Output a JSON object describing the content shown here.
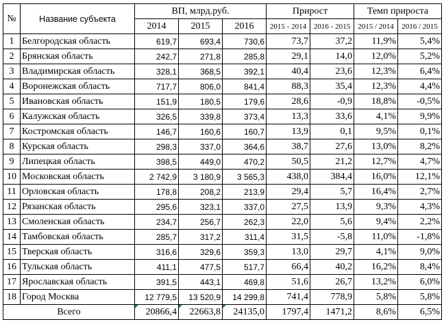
{
  "header": {
    "num": "№",
    "name": "Название субъекта",
    "vp": "ВП, млрд.руб.",
    "growth": "Прирост",
    "rate": "Темп прироста",
    "years": [
      "2014",
      "2015",
      "2016"
    ],
    "growth_cols": [
      "2015 - 2014",
      "2016 - 2015"
    ],
    "rate_cols": [
      "2015 / 2014",
      "2016 / 2015"
    ]
  },
  "rows": [
    {
      "n": "1",
      "name": "Белгородская область",
      "v2014": "619,7",
      "v2015": "693,4",
      "v2016": "730,6",
      "g1": "73,7",
      "g2": "37,2",
      "r1": "11,9%",
      "r2": "5,4%"
    },
    {
      "n": "2",
      "name": "Брянская область",
      "v2014": "242,7",
      "v2015": "271,8",
      "v2016": "285,8",
      "g1": "29,1",
      "g2": "14,0",
      "r1": "12,0%",
      "r2": "5,2%"
    },
    {
      "n": "3",
      "name": "Владимирская область",
      "v2014": "328,1",
      "v2015": "368,5",
      "v2016": "392,1",
      "g1": "40,4",
      "g2": "23,6",
      "r1": "12,3%",
      "r2": "6,4%"
    },
    {
      "n": "4",
      "name": "Воронежская область",
      "v2014": "717,7",
      "v2015": "806,0",
      "v2016": "841,4",
      "g1": "88,3",
      "g2": "35,4",
      "r1": "12,3%",
      "r2": "4,4%"
    },
    {
      "n": "5",
      "name": "Ивановская область",
      "v2014": "151,9",
      "v2015": "180,5",
      "v2016": "179,6",
      "g1": "28,6",
      "g2": "-0,9",
      "r1": "18,8%",
      "r2": "-0,5%"
    },
    {
      "n": "6",
      "name": "Калужская область",
      "v2014": "326,5",
      "v2015": "339,8",
      "v2016": "373,4",
      "g1": "13,3",
      "g2": "33,6",
      "r1": "4,1%",
      "r2": "9,9%"
    },
    {
      "n": "7",
      "name": "Костромская область",
      "v2014": "146,7",
      "v2015": "160,6",
      "v2016": "160,7",
      "g1": "13,9",
      "g2": "0,1",
      "r1": "9,5%",
      "r2": "0,1%"
    },
    {
      "n": "8",
      "name": "Курская область",
      "v2014": "298,3",
      "v2015": "337,0",
      "v2016": "364,6",
      "g1": "38,7",
      "g2": "27,6",
      "r1": "13,0%",
      "r2": "8,2%"
    },
    {
      "n": "9",
      "name": "Липецкая область",
      "v2014": "398,5",
      "v2015": "449,0",
      "v2016": "470,2",
      "g1": "50,5",
      "g2": "21,2",
      "r1": "12,7%",
      "r2": "4,7%"
    },
    {
      "n": "10",
      "name": "Московская область",
      "v2014": "2 742,9",
      "v2015": "3 180,9",
      "v2016": "3 565,3",
      "g1": "438,0",
      "g2": "384,4",
      "r1": "16,0%",
      "r2": "12,1%"
    },
    {
      "n": "11",
      "name": "Орловская область",
      "v2014": "178,8",
      "v2015": "208,2",
      "v2016": "213,9",
      "g1": "29,4",
      "g2": "5,7",
      "r1": "16,4%",
      "r2": "2,7%"
    },
    {
      "n": "12",
      "name": "Рязанская область",
      "v2014": "295,6",
      "v2015": "323,1",
      "v2016": "337,0",
      "g1": "27,5",
      "g2": "13,9",
      "r1": "9,3%",
      "r2": "4,3%"
    },
    {
      "n": "13",
      "name": "Смоленская область",
      "v2014": "234,7",
      "v2015": "256,7",
      "v2016": "262,3",
      "g1": "22,0",
      "g2": "5,6",
      "r1": "9,4%",
      "r2": "2,2%"
    },
    {
      "n": "14",
      "name": "Тамбовская область",
      "v2014": "285,7",
      "v2015": "317,2",
      "v2016": "311,4",
      "g1": "31,5",
      "g2": "-5,8",
      "r1": "11,0%",
      "r2": "-1,8%"
    },
    {
      "n": "15",
      "name": "Тверская область",
      "v2014": "316,6",
      "v2015": "329,6",
      "v2016": "359,3",
      "g1": "13,0",
      "g2": "29,7",
      "r1": "4,1%",
      "r2": "9,0%"
    },
    {
      "n": "16",
      "name": "Тульская область",
      "v2014": "411,1",
      "v2015": "477,5",
      "v2016": "517,7",
      "g1": "66,4",
      "g2": "40,2",
      "r1": "16,2%",
      "r2": "8,4%"
    },
    {
      "n": "17",
      "name": "Ярославская область",
      "v2014": "391,5",
      "v2015": "443,1",
      "v2016": "469,8",
      "g1": "51,6",
      "g2": "26,7",
      "r1": "13,2%",
      "r2": "6,0%"
    },
    {
      "n": "18",
      "name": "Город Москва",
      "v2014": "12 779,5",
      "v2015": "13 520,9",
      "v2016": "14 299,8",
      "g1": "741,4",
      "g2": "778,9",
      "r1": "5,8%",
      "r2": "5,8%"
    }
  ],
  "total": {
    "label": "Всего",
    "v2014": "20866,4",
    "v2015": "22663,8",
    "v2016": "24135,0",
    "g1": "1797,4",
    "g2": "1471,2",
    "r1": "8,6%",
    "r2": "6,5%"
  },
  "colors": {
    "marker": "#1e8a3c"
  }
}
